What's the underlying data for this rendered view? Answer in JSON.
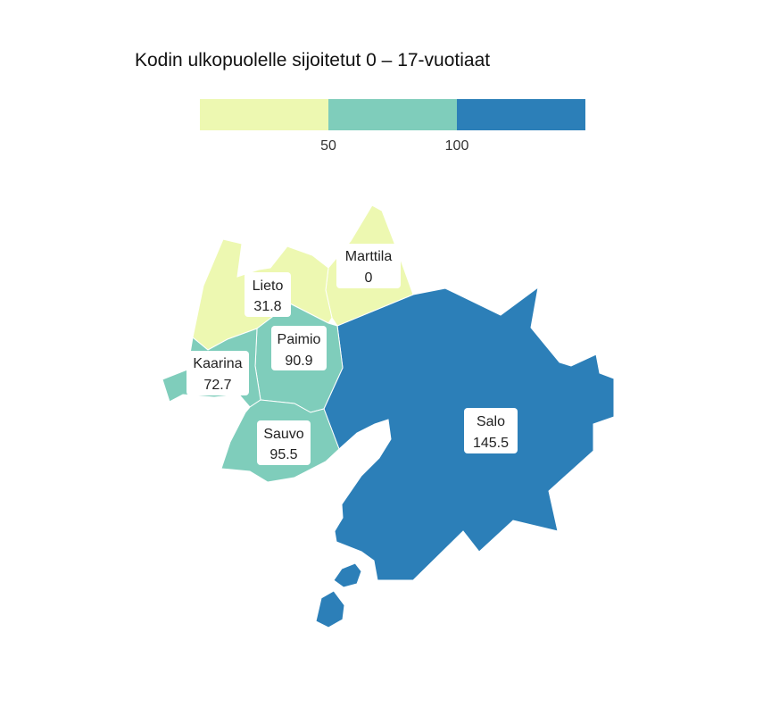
{
  "title": "Kodin ulkopuolelle sijoitetut 0 – 17-vuotiaat",
  "legend": {
    "bins": [
      {
        "color": "#edf8b1"
      },
      {
        "color": "#7fcdbb"
      },
      {
        "color": "#2c7fb8"
      }
    ],
    "ticks": [
      "50",
      "100"
    ]
  },
  "regions": [
    {
      "name": "Marttila",
      "value": "0",
      "color": "#edf8b1"
    },
    {
      "name": "Lieto",
      "value": "31.8",
      "color": "#edf8b1"
    },
    {
      "name": "Paimio",
      "value": "90.9",
      "color": "#7fcdbb"
    },
    {
      "name": "Kaarina",
      "value": "72.7",
      "color": "#7fcdbb"
    },
    {
      "name": "Sauvo",
      "value": "95.5",
      "color": "#7fcdbb"
    },
    {
      "name": "Salo",
      "value": "145.5",
      "color": "#2c7fb8"
    }
  ]
}
